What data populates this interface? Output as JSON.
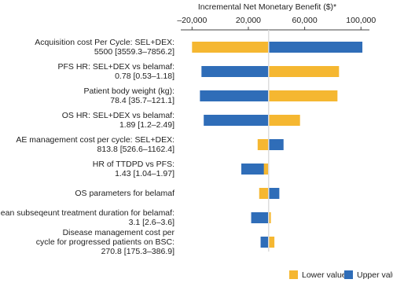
{
  "chart_data": {
    "type": "tornado",
    "x_label": "Incremental Net Monetary Benefit ($)*",
    "categories": [
      [
        "Acquisition cost Per Cycle: SEL+DEX:",
        "5500 [3559.3–7856.2]"
      ],
      [
        "PFS HR: SEL+DEX vs belamaf:",
        "0.78 [0.53–1.18]"
      ],
      [
        "Patient body weight (kg):",
        "78.4 [35.7–121.1]"
      ],
      [
        "OS HR: SEL+DEX vs belamaf:",
        "1.89 [1.2–2.49]"
      ],
      [
        "AE management cost per cycle: SEL+DEX:",
        "813.8 [526.6–1162.4]"
      ],
      [
        "HR of TTDPD vs PFS:",
        "1.43 [1.04–1.97]"
      ],
      [
        "OS parameters for belamaf"
      ],
      [
        "Mean subseqeunt treatment duration for belamaf:",
        "3.1 [2.6–3.6]"
      ],
      [
        "Disease management cost per",
        "cycle for progressed patients on BSC:",
        "270.8 [175.3–386.9]"
      ]
    ],
    "base_value": 34400,
    "series": [
      {
        "name": "Lower value",
        "color": "#f5b731",
        "values": [
          -20000,
          84400,
          83300,
          56700,
          26600,
          31000,
          27700,
          36000,
          38500
        ]
      },
      {
        "name": "Upper value",
        "color": "#2f6db8",
        "values": [
          101000,
          -13300,
          -14400,
          -11700,
          45000,
          15000,
          42000,
          22000,
          28700
        ]
      }
    ],
    "xlim": [
      -28000,
      106000
    ],
    "xticks": [
      {
        "value": -20000,
        "label": "–20,000"
      },
      {
        "value": 20000,
        "label": "20,000"
      },
      {
        "value": 60000,
        "label": "60,000"
      },
      {
        "value": 100000,
        "label": "100,000"
      }
    ]
  }
}
